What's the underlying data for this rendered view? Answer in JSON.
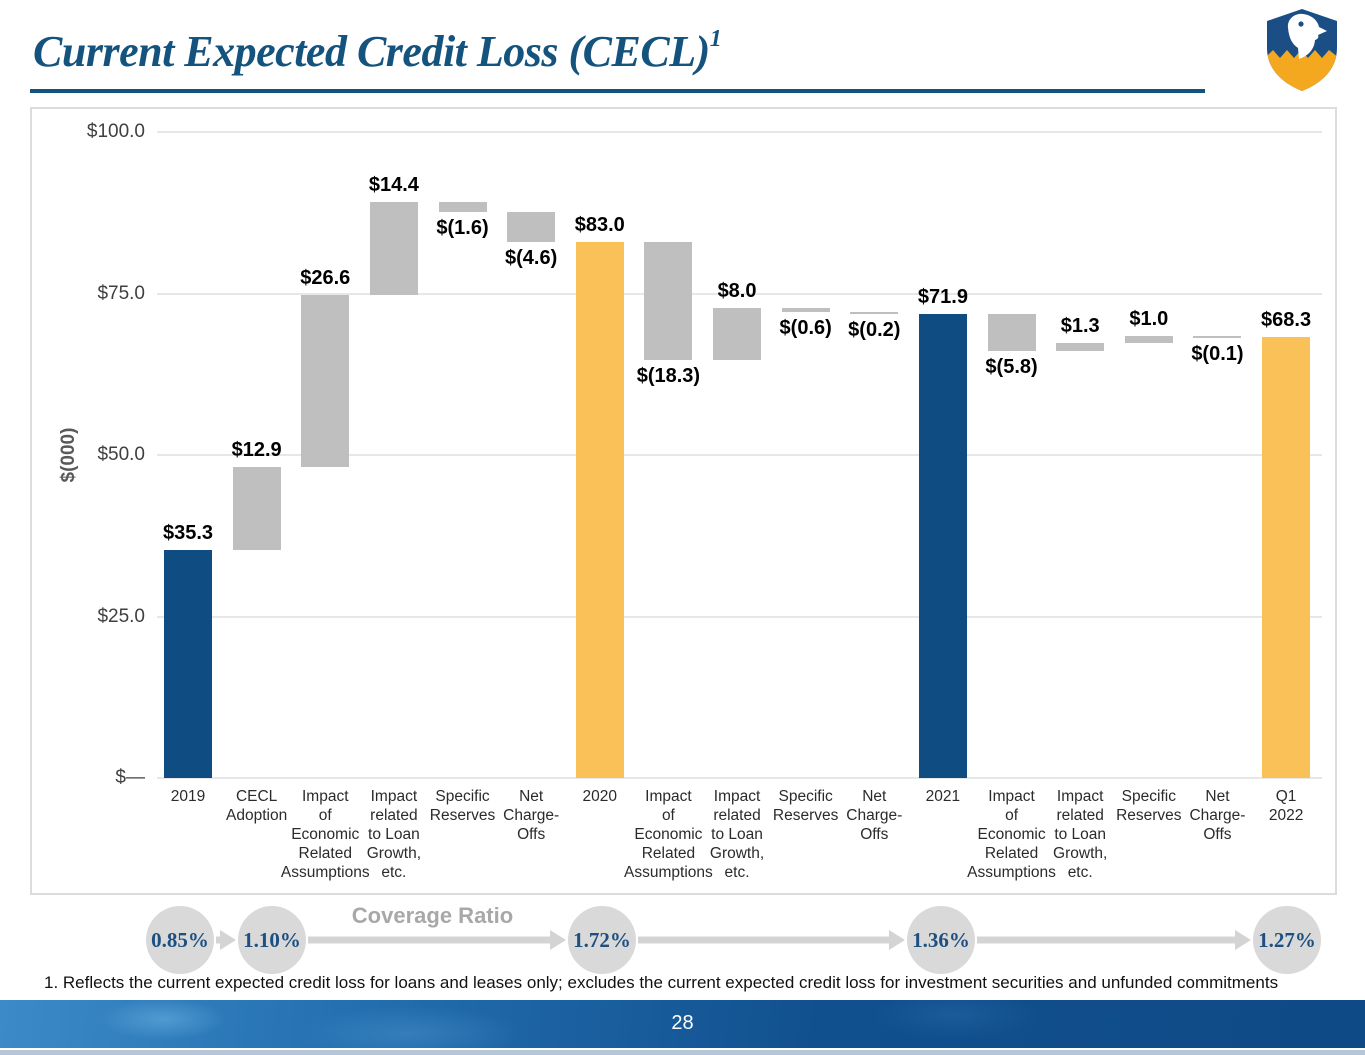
{
  "title": {
    "text": "Current Expected Credit Loss (CECL)",
    "superscript": "1"
  },
  "logo": {
    "icon": "eagle-shield-logo"
  },
  "chart_data": {
    "type": "bar",
    "subtype": "waterfall",
    "ylabel": "$(000)",
    "ylim": [
      0,
      100
    ],
    "grid": true,
    "yticks": [
      {
        "value": 100,
        "label": "$100.0"
      },
      {
        "value": 75,
        "label": "$75.0"
      },
      {
        "value": 50,
        "label": "$50.0"
      },
      {
        "value": 25,
        "label": "$25.0"
      },
      {
        "value": 0,
        "label": "$—"
      }
    ],
    "bar_colors": {
      "total_blue": "#0f4c81",
      "delta_gray": "#bfbfbf",
      "total_gold": "#f9c158"
    },
    "bars": [
      {
        "category": "2019",
        "lines": "2019",
        "start": 0,
        "end": 35.3,
        "value_label": "$35.3",
        "color": "total_blue",
        "label_position": "above"
      },
      {
        "category": "CECL Adoption",
        "lines": "CECL\nAdoption",
        "start": 35.3,
        "end": 48.2,
        "value_label": "$12.9",
        "color": "delta_gray",
        "label_position": "above"
      },
      {
        "category": "Impact of Economic Related Assumptions",
        "lines": "Impact\nof\nEconomic\nRelated\nAssumptions",
        "start": 48.2,
        "end": 74.8,
        "value_label": "$26.6",
        "color": "delta_gray",
        "label_position": "above"
      },
      {
        "category": "Impact related to Loan Growth, etc.",
        "lines": "Impact\nrelated\nto Loan\nGrowth,\netc.",
        "start": 74.8,
        "end": 89.2,
        "value_label": "$14.4",
        "color": "delta_gray",
        "label_position": "above"
      },
      {
        "category": "Specific Reserves",
        "lines": "Specific\nReserves",
        "start": 87.6,
        "end": 89.2,
        "value_label": "$(1.6)",
        "color": "delta_gray",
        "label_position": "below"
      },
      {
        "category": "Net Charge-Offs",
        "lines": "Net\nCharge-\nOffs",
        "start": 83.0,
        "end": 87.6,
        "value_label": "$(4.6)",
        "color": "delta_gray",
        "label_position": "below"
      },
      {
        "category": "2020",
        "lines": "2020",
        "start": 0,
        "end": 83.0,
        "value_label": "$83.0",
        "color": "total_gold",
        "label_position": "above"
      },
      {
        "category": "Impact of Economic Related Assumptions",
        "lines": "Impact\nof\nEconomic\nRelated\nAssumptions",
        "start": 64.7,
        "end": 83.0,
        "value_label": "$(18.3)",
        "color": "delta_gray",
        "label_position": "below"
      },
      {
        "category": "Impact related to Loan Growth, etc.",
        "lines": "Impact\nrelated\nto Loan\nGrowth,\netc.",
        "start": 64.7,
        "end": 72.7,
        "value_label": "$8.0",
        "color": "delta_gray",
        "label_position": "above"
      },
      {
        "category": "Specific Reserves",
        "lines": "Specific\nReserves",
        "start": 72.1,
        "end": 72.7,
        "value_label": "$(0.6)",
        "color": "delta_gray",
        "label_position": "below"
      },
      {
        "category": "Net Charge-Offs",
        "lines": "Net\nCharge-\nOffs",
        "start": 71.9,
        "end": 72.1,
        "value_label": "$(0.2)",
        "color": "delta_gray",
        "label_position": "below"
      },
      {
        "category": "2021",
        "lines": "2021",
        "start": 0,
        "end": 71.9,
        "value_label": "$71.9",
        "color": "total_blue",
        "label_position": "above"
      },
      {
        "category": "Impact of Economic Related Assumptions",
        "lines": "Impact\nof\nEconomic\nRelated\nAssumptions",
        "start": 66.1,
        "end": 71.9,
        "value_label": "$(5.8)",
        "color": "delta_gray",
        "label_position": "below"
      },
      {
        "category": "Impact related to Loan Growth, etc.",
        "lines": "Impact\nrelated\nto Loan\nGrowth,\netc.",
        "start": 66.1,
        "end": 67.4,
        "value_label": "$1.3",
        "color": "delta_gray",
        "label_position": "above"
      },
      {
        "category": "Specific Reserves",
        "lines": "Specific\nReserves",
        "start": 67.4,
        "end": 68.4,
        "value_label": "$1.0",
        "color": "delta_gray",
        "label_position": "above"
      },
      {
        "category": "Net Charge-Offs",
        "lines": "Net\nCharge-\nOffs",
        "start": 68.3,
        "end": 68.4,
        "value_label": "$(0.1)",
        "color": "delta_gray",
        "label_position": "below"
      },
      {
        "category": "Q1 2022",
        "lines": "Q1\n2022",
        "start": 0,
        "end": 68.3,
        "value_label": "$68.3",
        "color": "total_gold",
        "label_position": "above"
      }
    ]
  },
  "coverage_ratio": {
    "label": "Coverage Ratio",
    "values": [
      "0.85%",
      "1.10%",
      "1.72%",
      "1.36%",
      "1.27%"
    ],
    "circle_color": "#d9d9d9",
    "text_color": "#1d5081",
    "arrow_color": "#d4d4d4"
  },
  "footnote": "1. Reflects the current expected credit loss for loans and leases only; excludes the current expected credit loss for investment securities and unfunded commitments",
  "footer": {
    "page_number": "28"
  }
}
